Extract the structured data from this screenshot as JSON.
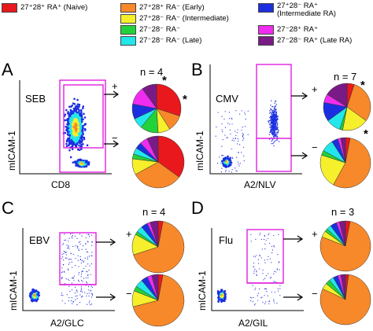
{
  "legend": {
    "items": [
      {
        "label": "27⁺28⁺ RA⁺ (Naive)",
        "color": "#e8181c"
      },
      {
        "label": "27⁺28⁺ RA⁻ (Early)",
        "color": "#f7892a"
      },
      {
        "label": "27⁺28⁻ RA⁻ (Intermediate)",
        "color": "#f6ef2b"
      },
      {
        "label": "27⁻28⁻ RA⁻",
        "color": "#22d23a"
      },
      {
        "label": "27⁻28⁻ RA⁻ (Late)",
        "color": "#22e6ea"
      },
      {
        "label": "27⁺28⁻ RA⁺\n(Intermediate RA)",
        "color": "#1c2fe0"
      },
      {
        "label": "27⁻28⁺ RA⁺",
        "color": "#f02cf0"
      },
      {
        "label": "27⁻28⁻ RA⁺ (Late RA)",
        "color": "#7a1a86"
      }
    ]
  },
  "panels": [
    {
      "letter": "A",
      "stim": "SEB",
      "n": "n = 4",
      "x_axis": "CD8",
      "y_axis": "mICAM-1",
      "plus": "+",
      "minus": "−",
      "pie_top": [
        30,
        11,
        8,
        12,
        7,
        10,
        12,
        10
      ],
      "pie_bottom": [
        35,
        32,
        10,
        3,
        4,
        4,
        5,
        7
      ]
    },
    {
      "letter": "B",
      "stim": "CMV",
      "n": "n = 7",
      "x_axis": "A2/NLV",
      "y_axis": "mICAM-1",
      "plus": "+",
      "minus": "−",
      "pie_top": [
        5,
        30,
        18,
        2,
        10,
        13,
        6,
        16
      ],
      "pie_bottom": [
        3,
        55,
        22,
        3,
        8,
        4,
        2,
        3
      ]
    },
    {
      "letter": "C",
      "stim": "EBV",
      "n": "n = 4",
      "x_axis": "A2/GLC",
      "y_axis": "mICAM-1",
      "plus": "+",
      "minus": "−",
      "pie_top": [
        3,
        67,
        13,
        2,
        4,
        4,
        2,
        5
      ],
      "pie_bottom": [
        3,
        68,
        10,
        3,
        5,
        4,
        3,
        4
      ]
    },
    {
      "letter": "D",
      "stim": "Flu",
      "n": "n = 3",
      "x_axis": "A2/GIL",
      "y_axis": "mICAM-1",
      "plus": "+",
      "minus": "−",
      "pie_top": [
        3,
        78,
        4,
        2,
        3,
        4,
        2,
        4
      ],
      "pie_bottom": [
        2,
        80,
        4,
        3,
        3,
        3,
        2,
        3
      ]
    }
  ],
  "stars": [
    "*",
    "*",
    "*",
    "*"
  ]
}
